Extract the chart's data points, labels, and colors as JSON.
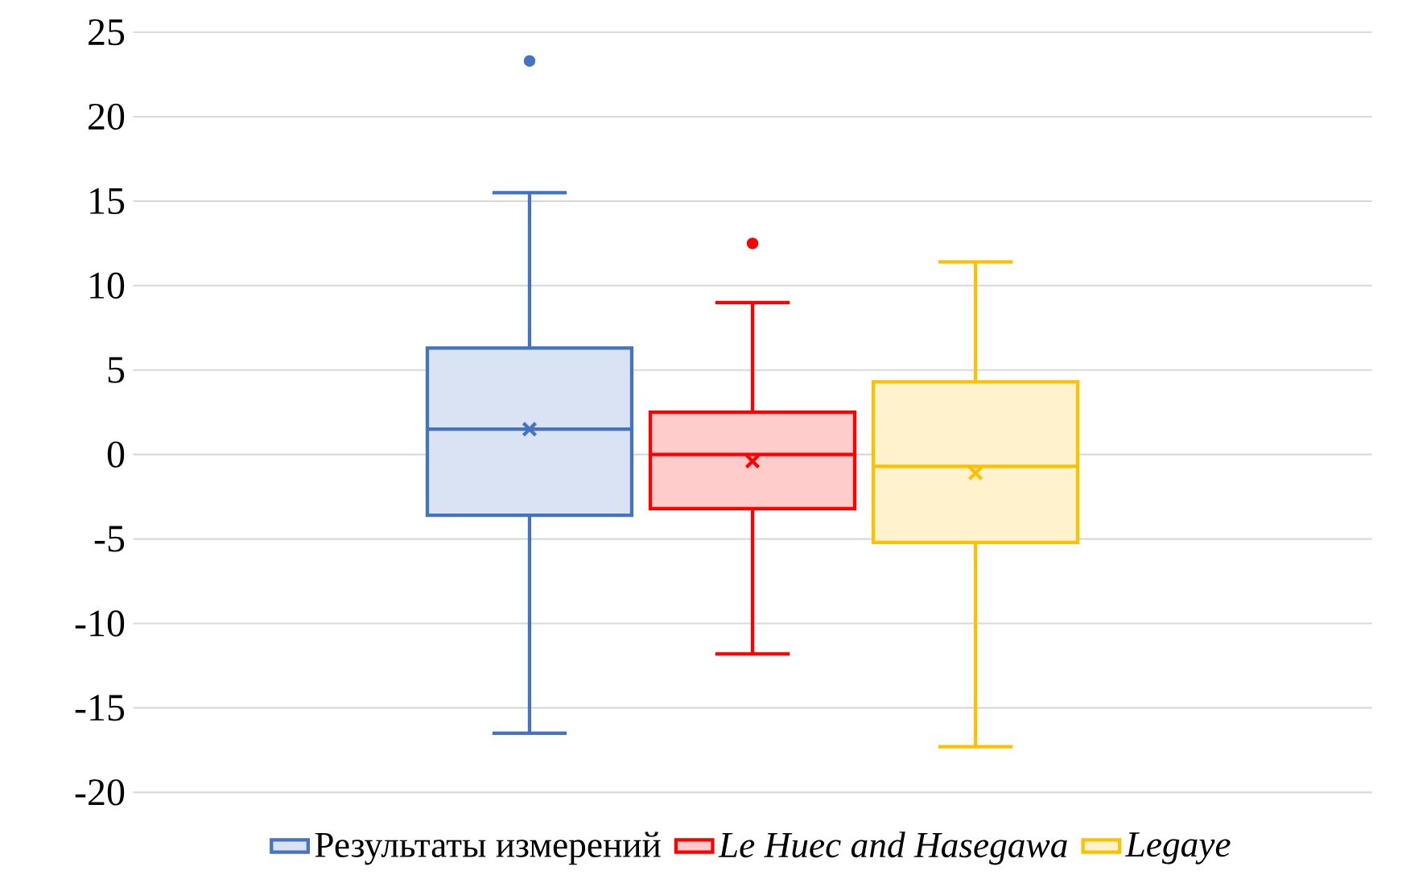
{
  "chart_data": {
    "type": "box",
    "categories": [
      null
    ],
    "series": [
      {
        "name": "Результаты измерений",
        "color": "#4472c4",
        "boxes": [
          {
            "low": -16.5,
            "q1": -3.6,
            "median": 1.5,
            "q3": 6.3,
            "high": 15.5,
            "mean": 1.5,
            "outliers": [
              23.3
            ]
          }
        ]
      },
      {
        "name": "*Le Huec and Hasegawa*",
        "color": "#ff0000",
        "boxes": [
          {
            "low": -11.8,
            "q1": -3.2,
            "median": 0,
            "q3": 2.5,
            "high": 9.0,
            "mean": -0.4,
            "outliers": [
              12.5
            ]
          }
        ]
      },
      {
        "name": "*Legaye*",
        "color": "#ffc000",
        "boxes": [
          {
            "low": -17.3,
            "q1": -5.2,
            "median": -0.7,
            "q3": 4.3,
            "high": 11.4,
            "mean": -1.1
          }
        ]
      }
    ],
    "ylim": [
      -20,
      25
    ],
    "yticks": [
      -20,
      -15,
      -10,
      -5,
      0,
      5,
      10,
      15,
      20,
      25
    ],
    "grid": "y",
    "legend": "bottom"
  }
}
